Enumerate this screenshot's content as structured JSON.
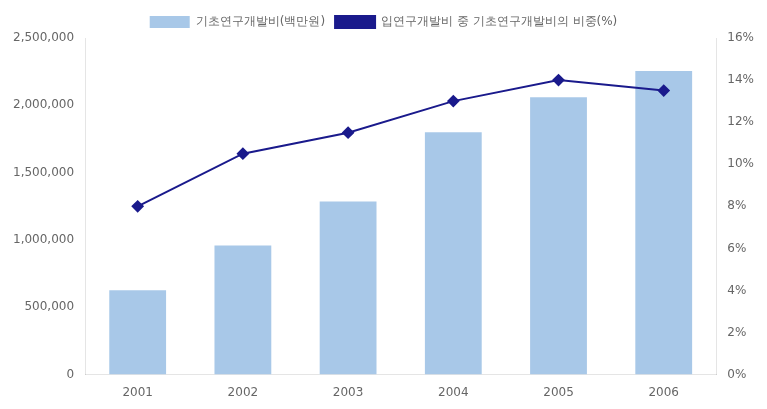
{
  "chart_data": {
    "type": "bar",
    "categories": [
      "2001",
      "2002",
      "2003",
      "2004",
      "2005",
      "2006"
    ],
    "series": [
      {
        "name": "기초연구개발비(백만원)",
        "color": "#a8c8e8",
        "values": [
          627000,
          958000,
          1285000,
          1800000,
          2060000,
          2255000
        ]
      },
      {
        "name": "입연구개발비 중 기초연구개발비의 비중(%)",
        "type": "line",
        "axis": "y2",
        "color": "#1a1a8c",
        "marker": "diamond",
        "values": [
          0.08,
          0.105,
          0.115,
          0.13,
          0.14,
          0.135
        ]
      }
    ],
    "ylim": [
      0,
      2500000
    ],
    "yticks": [
      0,
      {
        "value": 500000,
        "label": "500,000"
      },
      {
        "value": 1000000,
        "label": "1,000,000"
      },
      {
        "value": 1500000,
        "label": "1,500,000"
      },
      {
        "value": 2000000,
        "label": "2,000,000"
      },
      {
        "value": 2500000,
        "label": "2,500,000"
      }
    ],
    "y2lim": [
      0,
      0.16
    ],
    "y2ticks": [
      {
        "value": 0,
        "label": "0%"
      },
      {
        "value": 0.02,
        "label": "2%"
      },
      {
        "value": 0.04,
        "label": "4%"
      },
      {
        "value": 0.06,
        "label": "6%"
      },
      {
        "value": 0.08,
        "label": "8%"
      },
      {
        "value": 0.1,
        "label": "10%"
      },
      {
        "value": 0.12,
        "label": "12%"
      },
      {
        "value": 0.14,
        "label": "14%"
      },
      {
        "value": 0.16,
        "label": "16%"
      }
    ],
    "grid": false,
    "legend": "top"
  }
}
